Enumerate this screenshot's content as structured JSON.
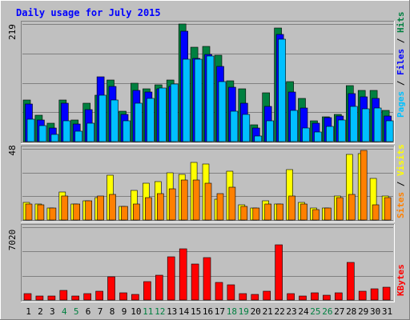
{
  "title": "Daily usage for July 2015",
  "colors": {
    "background": "#c0c0c0",
    "title": "#0000ff",
    "hits": "#008040",
    "files": "#0000ff",
    "pages": "#00c0ff",
    "visits": "#ffff00",
    "sites": "#ff8000",
    "kbytes": "#ff0000",
    "weekend_label": "#008040"
  },
  "right_labels": {
    "hits": "Hits",
    "files": "Files",
    "pages": "Pages",
    "visits": "Visits",
    "sites": "Sites",
    "kbytes": "KBytes",
    "separator": " / "
  },
  "chart_data": [
    {
      "type": "bar",
      "panel": "hits-files-pages",
      "max_label": "219",
      "ylim": [
        0,
        219
      ],
      "grid": true,
      "categories": [
        "1",
        "2",
        "3",
        "4",
        "5",
        "6",
        "7",
        "8",
        "9",
        "10",
        "11",
        "12",
        "13",
        "14",
        "15",
        "16",
        "17",
        "18",
        "19",
        "20",
        "21",
        "22",
        "23",
        "24",
        "25",
        "26",
        "27",
        "28",
        "29",
        "30",
        "31"
      ],
      "series": [
        {
          "name": "Hits",
          "color": "#008040",
          "values": [
            77,
            49,
            35,
            78,
            40,
            72,
            87,
            115,
            56,
            109,
            99,
            106,
            115,
            219,
            176,
            177,
            161,
            113,
            99,
            31,
            91,
            211,
            111,
            81,
            38,
            46,
            50,
            105,
            96,
            96,
            58
          ]
        },
        {
          "name": "Files",
          "color": "#0000ff",
          "values": [
            70,
            40,
            26,
            72,
            33,
            60,
            120,
            103,
            51,
            95,
            93,
            99,
            103,
            206,
            155,
            162,
            140,
            101,
            71,
            26,
            65,
            200,
            93,
            63,
            35,
            45,
            48,
            89,
            84,
            80,
            48
          ]
        },
        {
          "name": "Pages",
          "color": "#00c0ff",
          "values": [
            41,
            30,
            14,
            38,
            20,
            35,
            86,
            78,
            39,
            72,
            80,
            100,
            107,
            153,
            153,
            160,
            112,
            56,
            51,
            11,
            39,
            190,
            58,
            25,
            18,
            28,
            40,
            65,
            61,
            63,
            38
          ]
        }
      ]
    },
    {
      "type": "bar",
      "panel": "visits-sites",
      "max_label": "48",
      "ylim": [
        0,
        48
      ],
      "grid": true,
      "categories": [
        "1",
        "2",
        "3",
        "4",
        "5",
        "6",
        "7",
        "8",
        "9",
        "10",
        "11",
        "12",
        "13",
        "14",
        "15",
        "16",
        "17",
        "18",
        "19",
        "20",
        "21",
        "22",
        "23",
        "24",
        "25",
        "26",
        "27",
        "28",
        "29",
        "30",
        "31"
      ],
      "series": [
        {
          "name": "Visits",
          "color": "#ffff00",
          "values": [
            12,
            11,
            8,
            19,
            11,
            13,
            15,
            30,
            9,
            20,
            25,
            26,
            32,
            31,
            39,
            38,
            14,
            33,
            10,
            8,
            13,
            11,
            34,
            12,
            8,
            8,
            16,
            44,
            45,
            28,
            16
          ]
        },
        {
          "name": "Sites",
          "color": "#ff8000",
          "values": [
            11,
            10,
            8,
            16,
            11,
            13,
            16,
            17,
            9,
            11,
            15,
            18,
            21,
            27,
            27,
            25,
            18,
            22,
            9,
            8,
            11,
            11,
            16,
            11,
            7,
            8,
            15,
            17,
            47,
            10,
            15
          ]
        }
      ]
    },
    {
      "type": "bar",
      "panel": "kbytes",
      "max_label": "7020",
      "ylim": [
        0,
        7020
      ],
      "grid": true,
      "categories": [
        "1",
        "2",
        "3",
        "4",
        "5",
        "6",
        "7",
        "8",
        "9",
        "10",
        "11",
        "12",
        "13",
        "14",
        "15",
        "16",
        "17",
        "18",
        "19",
        "20",
        "21",
        "22",
        "23",
        "24",
        "25",
        "26",
        "27",
        "28",
        "29",
        "30",
        "31"
      ],
      "series": [
        {
          "name": "KBytes",
          "color": "#ff0000",
          "values": [
            650,
            400,
            350,
            900,
            400,
            650,
            850,
            2200,
            700,
            550,
            1800,
            2400,
            4200,
            4900,
            3500,
            4100,
            1700,
            1500,
            650,
            550,
            850,
            5300,
            650,
            350,
            700,
            450,
            700,
            3600,
            850,
            1100,
            1250
          ]
        }
      ]
    }
  ],
  "x_axis": {
    "labels": [
      "1",
      "2",
      "3",
      "4",
      "5",
      "6",
      "7",
      "8",
      "9",
      "10",
      "11",
      "12",
      "13",
      "14",
      "15",
      "16",
      "17",
      "18",
      "19",
      "20",
      "21",
      "22",
      "23",
      "24",
      "25",
      "26",
      "27",
      "28",
      "29",
      "30",
      "31"
    ],
    "weekend_days": [
      "4",
      "5",
      "11",
      "12",
      "18",
      "19",
      "25",
      "26"
    ]
  }
}
